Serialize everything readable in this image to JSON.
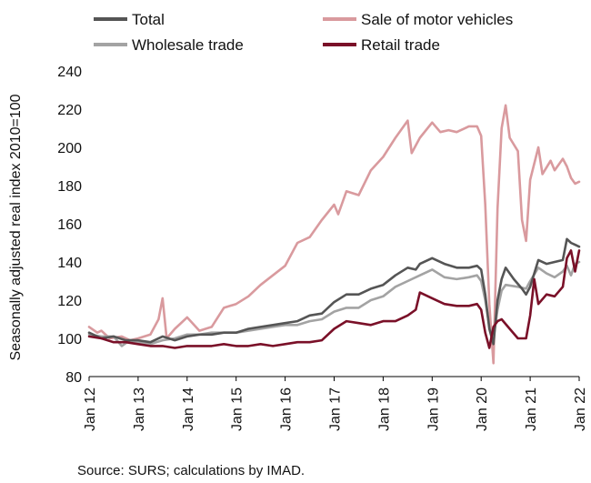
{
  "chart_data": {
    "type": "line",
    "ylabel": "Seasonally adjusted real index 2010=100",
    "source": "Source: SURS; calculations by IMAD.",
    "ylim": [
      80,
      240
    ],
    "yticks": [
      80,
      100,
      120,
      140,
      160,
      180,
      200,
      220,
      240
    ],
    "xlim": [
      "2012-01",
      "2022-01"
    ],
    "xticks": [
      {
        "label": "Jan 12",
        "date": "2012-01"
      },
      {
        "label": "Jan 13",
        "date": "2013-01"
      },
      {
        "label": "Jan 14",
        "date": "2014-01"
      },
      {
        "label": "Jan 15",
        "date": "2015-01"
      },
      {
        "label": "Jan 16",
        "date": "2016-01"
      },
      {
        "label": "Jan 17",
        "date": "2017-01"
      },
      {
        "label": "Jan 18",
        "date": "2018-01"
      },
      {
        "label": "Jan 19",
        "date": "2019-01"
      },
      {
        "label": "Jan 20",
        "date": "2020-01"
      },
      {
        "label": "Jan 21",
        "date": "2021-01"
      },
      {
        "label": "Jan 22",
        "date": "2022-01"
      }
    ],
    "grid": false,
    "legend_position": "top",
    "series": [
      {
        "name": "Sale of motor vehicles",
        "color": "#d99a9e",
        "points": [
          [
            "2012-01",
            106
          ],
          [
            "2012-03",
            103
          ],
          [
            "2012-04",
            104
          ],
          [
            "2012-06",
            100
          ],
          [
            "2012-09",
            101
          ],
          [
            "2012-11",
            99
          ],
          [
            "2013-01",
            100
          ],
          [
            "2013-04",
            102
          ],
          [
            "2013-06",
            110
          ],
          [
            "2013-07",
            121
          ],
          [
            "2013-08",
            100
          ],
          [
            "2013-10",
            105
          ],
          [
            "2014-01",
            111
          ],
          [
            "2014-04",
            104
          ],
          [
            "2014-07",
            106
          ],
          [
            "2014-10",
            116
          ],
          [
            "2015-01",
            118
          ],
          [
            "2015-04",
            122
          ],
          [
            "2015-07",
            128
          ],
          [
            "2015-10",
            133
          ],
          [
            "2016-01",
            138
          ],
          [
            "2016-04",
            150
          ],
          [
            "2016-07",
            153
          ],
          [
            "2016-10",
            162
          ],
          [
            "2017-01",
            170
          ],
          [
            "2017-02",
            165
          ],
          [
            "2017-04",
            177
          ],
          [
            "2017-07",
            175
          ],
          [
            "2017-10",
            188
          ],
          [
            "2018-01",
            195
          ],
          [
            "2018-04",
            205
          ],
          [
            "2018-07",
            214
          ],
          [
            "2018-08",
            197
          ],
          [
            "2018-10",
            205
          ],
          [
            "2019-01",
            213
          ],
          [
            "2019-03",
            208
          ],
          [
            "2019-05",
            209
          ],
          [
            "2019-07",
            208
          ],
          [
            "2019-10",
            211
          ],
          [
            "2019-12",
            211
          ],
          [
            "2020-01",
            206
          ],
          [
            "2020-02",
            170
          ],
          [
            "2020-03",
            118
          ],
          [
            "2020-04",
            87
          ],
          [
            "2020-05",
            168
          ],
          [
            "2020-06",
            210
          ],
          [
            "2020-07",
            222
          ],
          [
            "2020-08",
            205
          ],
          [
            "2020-10",
            198
          ],
          [
            "2020-11",
            162
          ],
          [
            "2020-12",
            151
          ],
          [
            "2021-01",
            183
          ],
          [
            "2021-03",
            200
          ],
          [
            "2021-04",
            186
          ],
          [
            "2021-06",
            193
          ],
          [
            "2021-07",
            188
          ],
          [
            "2021-09",
            194
          ],
          [
            "2021-10",
            190
          ],
          [
            "2021-11",
            184
          ],
          [
            "2021-12",
            181
          ],
          [
            "2022-01",
            182
          ]
        ]
      },
      {
        "name": "Wholesale trade",
        "color": "#a3a3a3",
        "points": [
          [
            "2012-01",
            102
          ],
          [
            "2012-04",
            101
          ],
          [
            "2012-07",
            101
          ],
          [
            "2012-09",
            96
          ],
          [
            "2012-11",
            99
          ],
          [
            "2013-01",
            98
          ],
          [
            "2013-04",
            97
          ],
          [
            "2013-07",
            99
          ],
          [
            "2013-10",
            100
          ],
          [
            "2014-01",
            102
          ],
          [
            "2014-04",
            102
          ],
          [
            "2014-07",
            103
          ],
          [
            "2014-10",
            103
          ],
          [
            "2015-01",
            103
          ],
          [
            "2015-04",
            104
          ],
          [
            "2015-07",
            105
          ],
          [
            "2015-10",
            106
          ],
          [
            "2016-01",
            107
          ],
          [
            "2016-04",
            107
          ],
          [
            "2016-07",
            109
          ],
          [
            "2016-10",
            110
          ],
          [
            "2017-01",
            114
          ],
          [
            "2017-04",
            116
          ],
          [
            "2017-07",
            116
          ],
          [
            "2017-10",
            120
          ],
          [
            "2018-01",
            122
          ],
          [
            "2018-04",
            127
          ],
          [
            "2018-07",
            130
          ],
          [
            "2018-10",
            133
          ],
          [
            "2019-01",
            136
          ],
          [
            "2019-04",
            132
          ],
          [
            "2019-07",
            131
          ],
          [
            "2019-10",
            132
          ],
          [
            "2019-12",
            133
          ],
          [
            "2020-01",
            130
          ],
          [
            "2020-02",
            120
          ],
          [
            "2020-03",
            106
          ],
          [
            "2020-04",
            100
          ],
          [
            "2020-05",
            115
          ],
          [
            "2020-06",
            125
          ],
          [
            "2020-07",
            128
          ],
          [
            "2020-10",
            127
          ],
          [
            "2020-12",
            126
          ],
          [
            "2021-01",
            130
          ],
          [
            "2021-03",
            137
          ],
          [
            "2021-05",
            134
          ],
          [
            "2021-07",
            132
          ],
          [
            "2021-09",
            135
          ],
          [
            "2021-10",
            138
          ],
          [
            "2021-11",
            133
          ],
          [
            "2021-12",
            139
          ],
          [
            "2022-01",
            140
          ]
        ]
      },
      {
        "name": "Total",
        "color": "#555555",
        "points": [
          [
            "2012-01",
            103
          ],
          [
            "2012-04",
            100
          ],
          [
            "2012-07",
            101
          ],
          [
            "2012-10",
            99
          ],
          [
            "2013-01",
            99
          ],
          [
            "2013-04",
            98
          ],
          [
            "2013-07",
            101
          ],
          [
            "2013-10",
            99
          ],
          [
            "2014-01",
            101
          ],
          [
            "2014-04",
            102
          ],
          [
            "2014-07",
            102
          ],
          [
            "2014-10",
            103
          ],
          [
            "2015-01",
            103
          ],
          [
            "2015-04",
            105
          ],
          [
            "2015-07",
            106
          ],
          [
            "2015-10",
            107
          ],
          [
            "2016-01",
            108
          ],
          [
            "2016-04",
            109
          ],
          [
            "2016-07",
            112
          ],
          [
            "2016-10",
            113
          ],
          [
            "2017-01",
            119
          ],
          [
            "2017-04",
            123
          ],
          [
            "2017-07",
            123
          ],
          [
            "2017-10",
            126
          ],
          [
            "2018-01",
            128
          ],
          [
            "2018-04",
            133
          ],
          [
            "2018-07",
            137
          ],
          [
            "2018-09",
            136
          ],
          [
            "2018-10",
            139
          ],
          [
            "2019-01",
            142
          ],
          [
            "2019-04",
            139
          ],
          [
            "2019-07",
            137
          ],
          [
            "2019-10",
            137
          ],
          [
            "2019-12",
            138
          ],
          [
            "2020-01",
            136
          ],
          [
            "2020-02",
            123
          ],
          [
            "2020-03",
            105
          ],
          [
            "2020-04",
            97
          ],
          [
            "2020-05",
            120
          ],
          [
            "2020-06",
            131
          ],
          [
            "2020-07",
            137
          ],
          [
            "2020-09",
            131
          ],
          [
            "2020-11",
            126
          ],
          [
            "2020-12",
            123
          ],
          [
            "2021-01",
            127
          ],
          [
            "2021-03",
            141
          ],
          [
            "2021-05",
            139
          ],
          [
            "2021-07",
            140
          ],
          [
            "2021-09",
            141
          ],
          [
            "2021-10",
            152
          ],
          [
            "2021-11",
            150
          ],
          [
            "2021-12",
            149
          ],
          [
            "2022-01",
            148
          ]
        ]
      },
      {
        "name": "Retail trade",
        "color": "#7a1028",
        "points": [
          [
            "2012-01",
            101
          ],
          [
            "2012-04",
            100
          ],
          [
            "2012-07",
            98
          ],
          [
            "2012-10",
            98
          ],
          [
            "2013-01",
            97
          ],
          [
            "2013-04",
            96
          ],
          [
            "2013-07",
            96
          ],
          [
            "2013-10",
            95
          ],
          [
            "2014-01",
            96
          ],
          [
            "2014-04",
            96
          ],
          [
            "2014-07",
            96
          ],
          [
            "2014-10",
            97
          ],
          [
            "2015-01",
            96
          ],
          [
            "2015-04",
            96
          ],
          [
            "2015-07",
            97
          ],
          [
            "2015-10",
            96
          ],
          [
            "2016-01",
            97
          ],
          [
            "2016-04",
            98
          ],
          [
            "2016-07",
            98
          ],
          [
            "2016-10",
            99
          ],
          [
            "2017-01",
            105
          ],
          [
            "2017-04",
            109
          ],
          [
            "2017-07",
            108
          ],
          [
            "2017-10",
            107
          ],
          [
            "2018-01",
            109
          ],
          [
            "2018-04",
            109
          ],
          [
            "2018-07",
            112
          ],
          [
            "2018-09",
            115
          ],
          [
            "2018-10",
            124
          ],
          [
            "2019-01",
            121
          ],
          [
            "2019-04",
            118
          ],
          [
            "2019-07",
            117
          ],
          [
            "2019-10",
            117
          ],
          [
            "2019-12",
            118
          ],
          [
            "2020-01",
            115
          ],
          [
            "2020-02",
            103
          ],
          [
            "2020-03",
            95
          ],
          [
            "2020-04",
            106
          ],
          [
            "2020-05",
            109
          ],
          [
            "2020-06",
            110
          ],
          [
            "2020-08",
            105
          ],
          [
            "2020-10",
            100
          ],
          [
            "2020-12",
            100
          ],
          [
            "2021-01",
            112
          ],
          [
            "2021-02",
            131
          ],
          [
            "2021-03",
            118
          ],
          [
            "2021-05",
            123
          ],
          [
            "2021-07",
            122
          ],
          [
            "2021-09",
            127
          ],
          [
            "2021-10",
            142
          ],
          [
            "2021-11",
            146
          ],
          [
            "2021-12",
            135
          ],
          [
            "2022-01",
            146
          ]
        ]
      }
    ]
  },
  "legend": [
    {
      "label": "Total",
      "color": "#555555"
    },
    {
      "label": "Sale of motor vehicles",
      "color": "#d99a9e"
    },
    {
      "label": "Wholesale trade",
      "color": "#a3a3a3"
    },
    {
      "label": "Retail trade",
      "color": "#7a1028"
    }
  ]
}
